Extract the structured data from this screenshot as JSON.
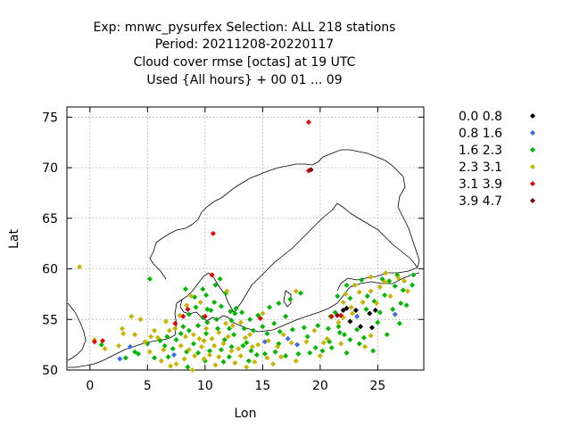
{
  "chart_data": {
    "type": "scatter",
    "title": [
      "Exp: mnwc_pysurfex   Selection: ALL    218 stations",
      "Period: 20211208-20220117",
      "Cloud cover rmse [octas] at  19 UTC",
      "Used {All hours} + 00 01 ... 09"
    ],
    "xlabel": "Lon",
    "ylabel": "Lat",
    "xlim": [
      -2,
      29
    ],
    "ylim": [
      50,
      76
    ],
    "xticks": [
      0,
      5,
      10,
      15,
      20,
      25
    ],
    "yticks": [
      50,
      55,
      60,
      65,
      70,
      75
    ],
    "grid": true,
    "legend_position": "right",
    "series": [
      {
        "name": "0.0 0.8",
        "color": "#000000",
        "points": [
          [
            22.0,
            55.9
          ],
          [
            22.3,
            56.1
          ],
          [
            23.1,
            55.9
          ],
          [
            24.3,
            55.6
          ],
          [
            24.8,
            55.9
          ],
          [
            23.5,
            54.3
          ],
          [
            24.5,
            54.2
          ],
          [
            22.6,
            54.8
          ]
        ]
      },
      {
        "name": "0.8 1.6",
        "color": "#3a6ae0",
        "points": [
          [
            3.5,
            52.3
          ],
          [
            7.3,
            51.5
          ],
          [
            2.6,
            51.1
          ],
          [
            15.2,
            52.8
          ],
          [
            18.0,
            52.5
          ],
          [
            26.5,
            55.5
          ],
          [
            23.2,
            55.3
          ],
          [
            17.2,
            53.1
          ]
        ]
      },
      {
        "name": "1.6 2.3",
        "color": "#00b800",
        "points": [
          [
            5.2,
            59.0
          ],
          [
            3.1,
            51.2
          ],
          [
            4.2,
            51.6
          ],
          [
            5.0,
            52.6
          ],
          [
            6.1,
            52.9
          ],
          [
            6.7,
            53.3
          ],
          [
            7.9,
            53.6
          ],
          [
            8.6,
            53.9
          ],
          [
            9.4,
            54.4
          ],
          [
            10.2,
            54.7
          ],
          [
            11.1,
            54.1
          ],
          [
            12.1,
            54.1
          ],
          [
            13.4,
            54.1
          ],
          [
            14.2,
            53.9
          ],
          [
            15.4,
            53.6
          ],
          [
            16.5,
            53.8
          ],
          [
            17.6,
            54.0
          ],
          [
            18.6,
            54.2
          ],
          [
            19.8,
            54.4
          ],
          [
            20.7,
            54.1
          ],
          [
            21.6,
            54.3
          ],
          [
            22.1,
            53.5
          ],
          [
            22.6,
            53.0
          ],
          [
            23.4,
            52.6
          ],
          [
            21.0,
            52.2
          ],
          [
            20.2,
            51.9
          ],
          [
            19.1,
            51.7
          ],
          [
            18.1,
            51.6
          ],
          [
            17.0,
            51.4
          ],
          [
            16.1,
            51.8
          ],
          [
            15.2,
            51.6
          ],
          [
            14.0,
            51.9
          ],
          [
            13.3,
            52.4
          ],
          [
            12.3,
            52.3
          ],
          [
            11.4,
            52.0
          ],
          [
            10.4,
            51.9
          ],
          [
            9.4,
            51.7
          ],
          [
            8.4,
            51.8
          ],
          [
            7.2,
            52.1
          ],
          [
            6.5,
            52.4
          ],
          [
            8.3,
            58.0
          ],
          [
            9.1,
            57.2
          ],
          [
            10.1,
            57.4
          ],
          [
            10.8,
            56.7
          ],
          [
            11.4,
            56.3
          ],
          [
            12.2,
            55.8
          ],
          [
            12.6,
            55.6
          ],
          [
            13.2,
            55.7
          ],
          [
            8.6,
            55.5
          ],
          [
            9.2,
            56.2
          ],
          [
            10.2,
            56.0
          ],
          [
            9.8,
            55.2
          ],
          [
            11.0,
            55.0
          ],
          [
            12.3,
            54.9
          ],
          [
            14.6,
            55.4
          ],
          [
            15.6,
            56.2
          ],
          [
            16.4,
            56.6
          ],
          [
            17.4,
            57.0
          ],
          [
            18.3,
            57.6
          ],
          [
            24.1,
            57.3
          ],
          [
            24.7,
            56.8
          ],
          [
            25.6,
            57.4
          ],
          [
            26.5,
            58.3
          ],
          [
            27.2,
            57.9
          ],
          [
            28.1,
            59.4
          ],
          [
            26.7,
            59.4
          ],
          [
            25.4,
            59.0
          ],
          [
            23.6,
            58.9
          ],
          [
            22.3,
            58.4
          ],
          [
            21.5,
            57.3
          ],
          [
            22.6,
            57.1
          ],
          [
            27.5,
            56.4
          ],
          [
            26.3,
            56.0
          ],
          [
            25.2,
            55.7
          ],
          [
            24.0,
            56.0
          ],
          [
            23.2,
            54.0
          ],
          [
            21.3,
            55.7
          ],
          [
            20.9,
            55.3
          ],
          [
            21.7,
            53.7
          ],
          [
            24.6,
            51.9
          ],
          [
            25.8,
            53.5
          ],
          [
            26.9,
            54.6
          ],
          [
            10.1,
            53.6
          ],
          [
            9.0,
            52.6
          ],
          [
            12.1,
            51.3
          ],
          [
            13.8,
            50.9
          ],
          [
            11.6,
            50.8
          ],
          [
            10.0,
            50.9
          ],
          [
            8.5,
            50.3
          ],
          [
            6.8,
            51.3
          ],
          [
            5.6,
            51.2
          ],
          [
            14.5,
            51.5
          ],
          [
            16.4,
            52.6
          ],
          [
            18.9,
            53.3
          ],
          [
            11.7,
            53.0
          ],
          [
            12.5,
            53.5
          ],
          [
            13.6,
            52.7
          ],
          [
            7.5,
            53.0
          ],
          [
            8.1,
            54.3
          ],
          [
            10.5,
            55.9
          ],
          [
            11.8,
            57.6
          ],
          [
            12.7,
            56.1
          ],
          [
            13.9,
            55.0
          ],
          [
            15.0,
            54.3
          ],
          [
            16.0,
            54.6
          ],
          [
            17.0,
            55.3
          ],
          [
            10.9,
            58.4
          ],
          [
            11.3,
            59.0
          ],
          [
            9.8,
            58.0
          ],
          [
            3.9,
            51.8
          ],
          [
            1.0,
            52.5
          ],
          [
            19.6,
            52.2
          ],
          [
            20.8,
            52.8
          ],
          [
            22.3,
            51.7
          ],
          [
            23.8,
            53.2
          ],
          [
            25.0,
            54.7
          ],
          [
            26.0,
            58.8
          ],
          [
            28.0,
            58.4
          ],
          [
            27.0,
            56.6
          ]
        ]
      },
      {
        "name": "2.3 3.1",
        "color": "#c8b400",
        "points": [
          [
            -0.9,
            60.2
          ],
          [
            0.4,
            53.0
          ],
          [
            1.3,
            52.1
          ],
          [
            2.9,
            53.6
          ],
          [
            3.6,
            55.3
          ],
          [
            4.4,
            55.0
          ],
          [
            2.8,
            54.1
          ],
          [
            3.9,
            53.5
          ],
          [
            4.8,
            52.8
          ],
          [
            5.3,
            53.3
          ],
          [
            5.9,
            53.2
          ],
          [
            6.9,
            53.9
          ],
          [
            7.4,
            54.1
          ],
          [
            7.8,
            55.4
          ],
          [
            8.4,
            56.4
          ],
          [
            8.8,
            57.3
          ],
          [
            9.6,
            56.7
          ],
          [
            10.6,
            53.1
          ],
          [
            9.9,
            52.9
          ],
          [
            9.0,
            53.5
          ],
          [
            8.3,
            53.3
          ],
          [
            7.9,
            52.4
          ],
          [
            9.7,
            52.3
          ],
          [
            10.8,
            52.4
          ],
          [
            11.6,
            52.6
          ],
          [
            12.9,
            52.1
          ],
          [
            13.5,
            53.2
          ],
          [
            14.6,
            52.5
          ],
          [
            15.5,
            52.9
          ],
          [
            16.3,
            52.3
          ],
          [
            17.5,
            52.7
          ],
          [
            18.8,
            52.8
          ],
          [
            11.2,
            51.3
          ],
          [
            10.4,
            51.5
          ],
          [
            9.1,
            51.4
          ],
          [
            8.2,
            51.1
          ],
          [
            7.5,
            50.6
          ],
          [
            6.2,
            50.9
          ],
          [
            12.6,
            50.7
          ],
          [
            13.1,
            51.4
          ],
          [
            14.3,
            50.8
          ],
          [
            10.9,
            50.5
          ],
          [
            8.9,
            50.0
          ],
          [
            7.0,
            50.4
          ],
          [
            11.9,
            57.8
          ],
          [
            13.9,
            53.5
          ],
          [
            12.4,
            54.4
          ],
          [
            16.8,
            53.5
          ],
          [
            22.2,
            57.5
          ],
          [
            23.0,
            58.4
          ],
          [
            24.4,
            59.2
          ],
          [
            25.2,
            58.2
          ],
          [
            26.1,
            57.3
          ],
          [
            27.6,
            57.8
          ],
          [
            24.4,
            57.8
          ],
          [
            23.7,
            56.7
          ],
          [
            22.0,
            56.7
          ],
          [
            22.7,
            56.2
          ],
          [
            20.6,
            53.1
          ],
          [
            21.8,
            52.6
          ],
          [
            23.9,
            52.3
          ],
          [
            24.4,
            53.4
          ],
          [
            19.5,
            53.9
          ],
          [
            20.3,
            52.7
          ],
          [
            20.0,
            51.4
          ],
          [
            16.6,
            51.3
          ],
          [
            17.9,
            50.9
          ],
          [
            15.9,
            50.6
          ],
          [
            13.6,
            50.3
          ],
          [
            12.3,
            51.9
          ],
          [
            11.8,
            54.6
          ],
          [
            13.1,
            54.7
          ],
          [
            15.0,
            55.6
          ],
          [
            17.9,
            57.8
          ],
          [
            26.8,
            59.1
          ],
          [
            25.7,
            59.6
          ],
          [
            27.3,
            58.8
          ],
          [
            24.9,
            56.6
          ],
          [
            22.0,
            55.2
          ],
          [
            6.4,
            52.0
          ],
          [
            5.2,
            51.8
          ],
          [
            2.5,
            52.4
          ],
          [
            9.5,
            53.1
          ],
          [
            11.2,
            53.7
          ],
          [
            10.1,
            54.1
          ],
          [
            6.6,
            54.8
          ],
          [
            5.6,
            53.9
          ],
          [
            8.6,
            52.0
          ],
          [
            9.9,
            51.1
          ],
          [
            21.6,
            54.7
          ],
          [
            23.4,
            57.7
          ],
          [
            25.6,
            58.7
          ],
          [
            22.8,
            55.6
          ],
          [
            14.1,
            52.3
          ],
          [
            12.0,
            53.3
          ],
          [
            15.4,
            51.2
          ]
        ]
      },
      {
        "name": "3.1 3.9",
        "color": "#e80000",
        "points": [
          [
            19.0,
            74.5
          ],
          [
            19.0,
            69.7
          ],
          [
            10.7,
            63.5
          ],
          [
            10.6,
            59.4
          ],
          [
            8.5,
            56.0
          ],
          [
            14.8,
            55.1
          ],
          [
            21.0,
            55.3
          ],
          [
            0.4,
            52.8
          ],
          [
            1.1,
            52.9
          ],
          [
            8.1,
            55.3
          ],
          [
            7.4,
            54.6
          ],
          [
            21.8,
            55.4
          ],
          [
            10.0,
            55.3
          ]
        ]
      },
      {
        "name": "3.9 4.7",
        "color": "#7a0000",
        "points": [
          [
            19.2,
            69.8
          ],
          [
            21.5,
            55.4
          ]
        ]
      }
    ]
  }
}
